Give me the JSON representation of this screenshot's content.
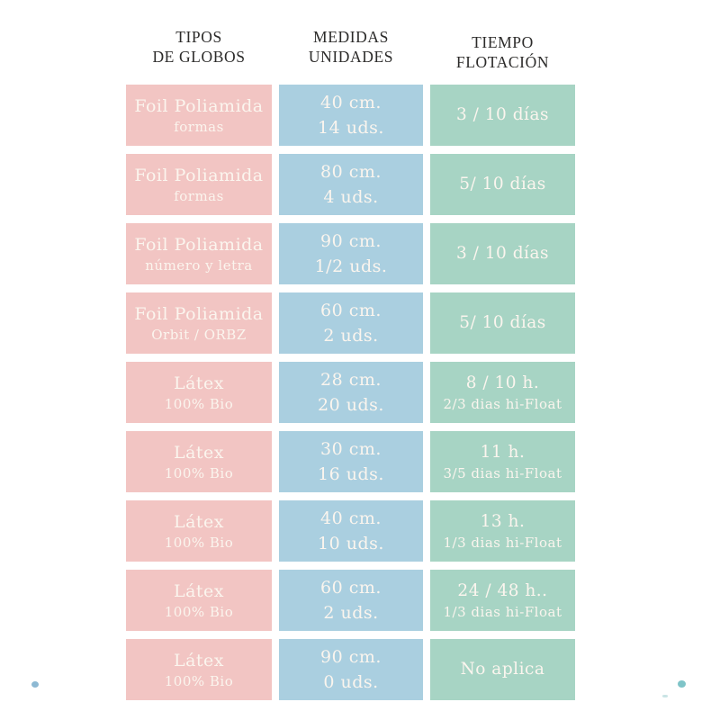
{
  "page": {
    "background": "#ffffff"
  },
  "colors": {
    "pink_cell": "#f2c5c3",
    "blue_cell": "#aacfe0",
    "green_cell": "#a7d4c4",
    "cell_text": "#fbf5ee",
    "header_text": "#2c2b2a",
    "dot_left_blue": "#8db9d3",
    "dot_right_teal": "#7fc4c8",
    "dot_right_faint": "#c9e4e5"
  },
  "headers": [
    {
      "line1": "TIPOS",
      "line2": "DE GLOBOS"
    },
    {
      "line1": "MEDIDAS",
      "line2": "UNIDADES"
    },
    {
      "line1": "TIEMPO",
      "line2": "FLOTACIÓN"
    }
  ],
  "rows": [
    {
      "tipo": "Foil Poliamida",
      "tipo_sub": "formas",
      "medida": "40 cm.",
      "unidades": "14 uds.",
      "tiempo": "3 / 10 días",
      "tiempo_sub": ""
    },
    {
      "tipo": "Foil Poliamida",
      "tipo_sub": "formas",
      "medida": "80 cm.",
      "unidades": "4 uds.",
      "tiempo": "5/ 10 días",
      "tiempo_sub": ""
    },
    {
      "tipo": "Foil Poliamida",
      "tipo_sub": "número y letra",
      "medida": "90 cm.",
      "unidades": "1/2 uds.",
      "tiempo": "3 / 10 días",
      "tiempo_sub": ""
    },
    {
      "tipo": "Foil Poliamida",
      "tipo_sub": "Orbit / ORBZ",
      "medida": "60 cm.",
      "unidades": "2 uds.",
      "tiempo": "5/ 10 días",
      "tiempo_sub": ""
    },
    {
      "tipo": "Látex",
      "tipo_sub": "100% Bio",
      "medida": "28 cm.",
      "unidades": "20 uds.",
      "tiempo": "8 / 10 h.",
      "tiempo_sub": "2/3 dias hi-Float"
    },
    {
      "tipo": "Látex",
      "tipo_sub": "100% Bio",
      "medida": "30 cm.",
      "unidades": "16 uds.",
      "tiempo": "11 h.",
      "tiempo_sub": "3/5 dias hi-Float"
    },
    {
      "tipo": "Látex",
      "tipo_sub": "100% Bio",
      "medida": "40 cm.",
      "unidades": "10 uds.",
      "tiempo": "13 h.",
      "tiempo_sub": "1/3 dias hi-Float"
    },
    {
      "tipo": "Látex",
      "tipo_sub": "100% Bio",
      "medida": "60 cm.",
      "unidades": "2 uds.",
      "tiempo": "24 / 48 h..",
      "tiempo_sub": "1/3 dias hi-Float"
    },
    {
      "tipo": "Látex",
      "tipo_sub": "100% Bio",
      "medida": "90 cm.",
      "unidades": "0 uds.",
      "tiempo": "No aplica",
      "tiempo_sub": ""
    }
  ],
  "chart_data": {
    "type": "table",
    "title": "Tipos de globos, medidas y tiempo de flotación",
    "columns": [
      "TIPOS DE GLOBOS",
      "MEDIDAS UNIDADES",
      "TIEMPO FLOTACIÓN"
    ],
    "rows": [
      [
        "Foil Poliamida — formas",
        "40 cm. — 14 uds.",
        "3 / 10 días"
      ],
      [
        "Foil Poliamida — formas",
        "80 cm. — 4 uds.",
        "5/ 10 días"
      ],
      [
        "Foil Poliamida — número y letra",
        "90 cm. — 1/2 uds.",
        "3 / 10 días"
      ],
      [
        "Foil Poliamida — Orbit / ORBZ",
        "60 cm. — 2 uds.",
        "5/ 10 días"
      ],
      [
        "Látex — 100% Bio",
        "28 cm. — 20 uds.",
        "8 / 10 h. — 2/3 dias hi-Float"
      ],
      [
        "Látex — 100% Bio",
        "30 cm. — 16 uds.",
        "11 h. — 3/5 dias hi-Float"
      ],
      [
        "Látex — 100% Bio",
        "40 cm. — 10 uds.",
        "13 h. — 1/3 dias hi-Float"
      ],
      [
        "Látex — 100% Bio",
        "60 cm. — 2 uds.",
        "24 / 48 h.. — 1/3 dias hi-Float"
      ],
      [
        "Látex — 100% Bio",
        "90 cm. — 0 uds.",
        "No aplica"
      ]
    ],
    "layout": {
      "grid": false,
      "legend": "none",
      "cell_colors_by_column": [
        "#f2c5c3",
        "#aacfe0",
        "#a7d4c4"
      ]
    }
  }
}
